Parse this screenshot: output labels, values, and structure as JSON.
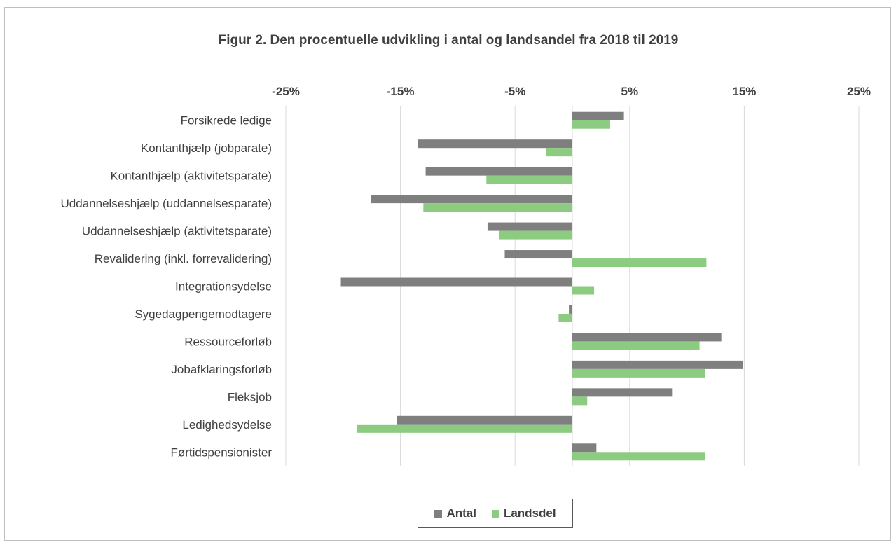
{
  "chart_data": {
    "type": "bar",
    "orientation": "horizontal",
    "title": "Figur 2. Den procentuelle udvikling i antal og landsandel fra 2018 til 2019",
    "categories": [
      "Forsikrede ledige",
      "Kontanthjælp (jobparate)",
      "Kontanthjælp (aktivitetsparate)",
      "Uddannelseshjælp (uddannelsesparate)",
      "Uddannelseshjælp (aktivitetsparate)",
      "Revalidering (inkl. forrevalidering)",
      "Integrationsydelse",
      "Sygedagpengemodtagere",
      "Ressourceforløb",
      "Jobafklaringsforløb",
      "Fleksjob",
      "Ledighedsydelse",
      "Førtidspensionister"
    ],
    "series": [
      {
        "name": "Antal",
        "color": "#7f7f7f",
        "values": [
          4.5,
          -13.5,
          -12.8,
          -17.6,
          -7.4,
          -5.9,
          -20.2,
          -0.3,
          13.0,
          14.9,
          8.7,
          -15.3,
          2.1
        ]
      },
      {
        "name": "Landsdel",
        "color": "#8ccc80",
        "values": [
          3.3,
          -2.3,
          -7.5,
          -13.0,
          -6.4,
          11.7,
          1.9,
          -1.2,
          11.1,
          11.6,
          1.3,
          -18.8,
          11.6
        ]
      }
    ],
    "xlim": [
      -25,
      25
    ],
    "xticks": [
      -25,
      -15,
      -5,
      5,
      15,
      25
    ],
    "xtick_labels": [
      "-25%",
      "-15%",
      "-5%",
      "5%",
      "15%",
      "25%"
    ],
    "xaxis_position": "top",
    "grid": true,
    "legend_position": "bottom"
  }
}
